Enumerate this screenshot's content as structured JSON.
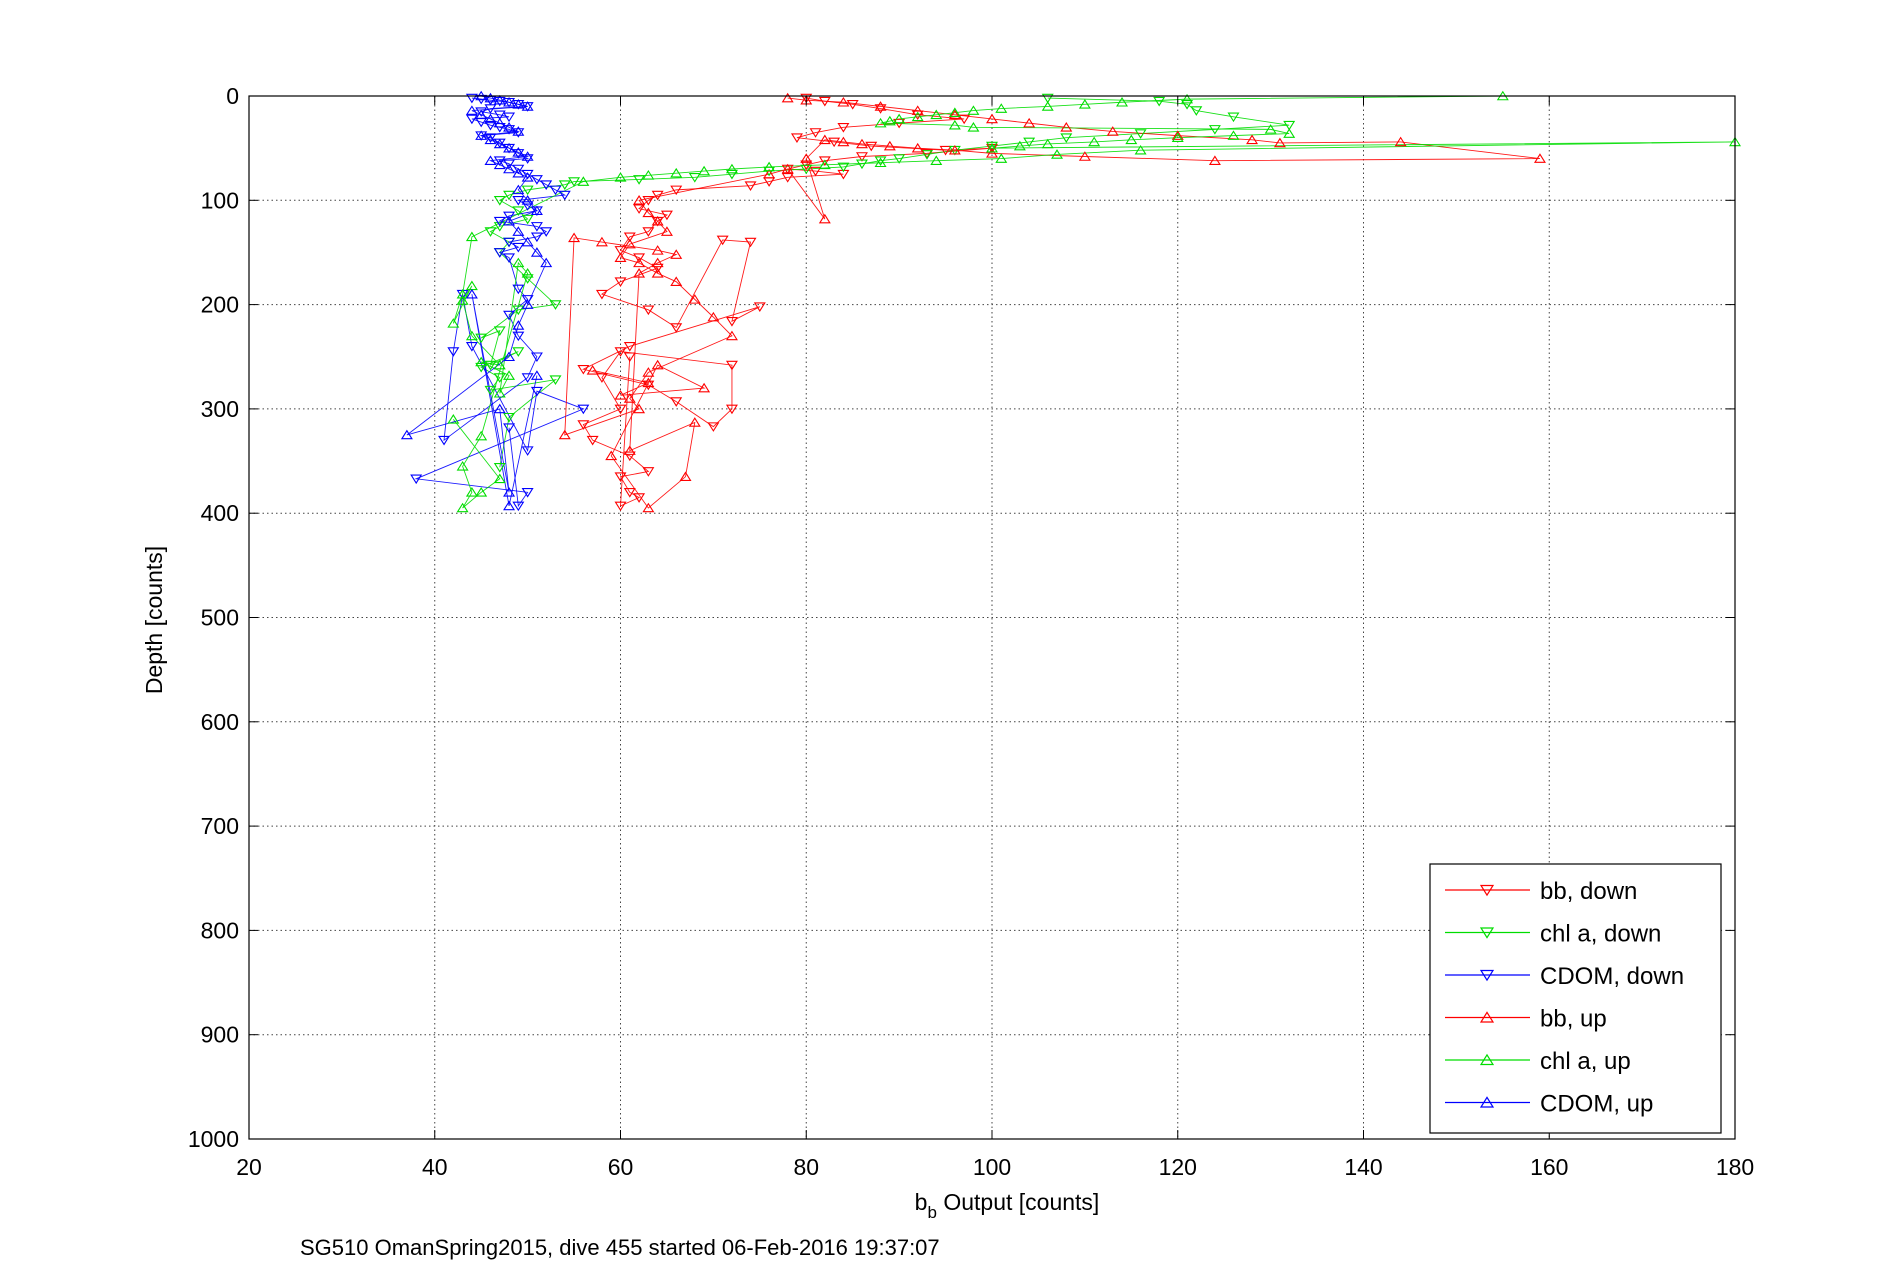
{
  "caption": "SG510 OmanSpring2015, dive 455 started 06-Feb-2016 19:37:07",
  "chart_data": {
    "type": "scatter",
    "title": "",
    "xlabel_main": "b",
    "xlabel_sub": "b",
    "xlabel_rest": " Output [counts]",
    "ylabel": "Depth [counts]",
    "xlim": [
      20,
      180
    ],
    "ylim": [
      0,
      1000
    ],
    "y_reversed": true,
    "grid": true,
    "legend_position": "bottom-right",
    "x_ticks": [
      20,
      40,
      60,
      80,
      100,
      120,
      140,
      160,
      180
    ],
    "y_ticks": [
      0,
      100,
      200,
      300,
      400,
      500,
      600,
      700,
      800,
      900,
      1000
    ],
    "x_tick_labels": [
      "20",
      "40",
      "60",
      "80",
      "100",
      "120",
      "140",
      "160",
      "180"
    ],
    "y_tick_labels": [
      "0",
      "100",
      "200",
      "300",
      "400",
      "500",
      "600",
      "700",
      "800",
      "900",
      "1000"
    ],
    "series": [
      {
        "name": "bb, down",
        "color": "#ff0000",
        "marker": "triangle-down",
        "x": [
          80,
          82,
          85,
          88,
          92,
          97,
          90,
          84,
          81,
          79,
          83,
          87,
          95,
          100,
          93,
          86,
          82,
          80,
          78,
          81,
          84,
          78,
          76,
          74,
          66,
          64,
          63,
          62,
          65,
          64,
          63,
          61,
          60,
          62,
          64,
          60,
          58,
          63,
          66,
          71,
          74,
          72,
          75,
          61,
          56,
          63,
          66,
          70,
          72,
          72,
          60,
          58,
          60,
          56,
          57,
          61,
          63,
          60,
          61,
          62,
          60,
          61
        ],
        "y": [
          2,
          5,
          8,
          12,
          18,
          22,
          26,
          30,
          35,
          40,
          44,
          48,
          52,
          50,
          55,
          58,
          62,
          66,
          70,
          72,
          75,
          78,
          82,
          86,
          90,
          95,
          100,
          108,
          114,
          120,
          130,
          135,
          148,
          155,
          165,
          178,
          190,
          205,
          222,
          138,
          140,
          216,
          202,
          240,
          262,
          277,
          293,
          317,
          300,
          258,
          245,
          270,
          300,
          315,
          330,
          345,
          360,
          365,
          380,
          385,
          393,
          250
        ]
      },
      {
        "name": "chl a, down",
        "color": "#00dd00",
        "marker": "triangle-down",
        "x": [
          106,
          118,
          121,
          122,
          126,
          132,
          124,
          116,
          108,
          104,
          100,
          96,
          93,
          90,
          88,
          86,
          84,
          80,
          76,
          72,
          68,
          62,
          55,
          54,
          50,
          48,
          47,
          49,
          50,
          47,
          46,
          48,
          47,
          50,
          53,
          49,
          45,
          47,
          46,
          49,
          45,
          47,
          46,
          53,
          48,
          47
        ],
        "y": [
          2,
          5,
          8,
          14,
          20,
          28,
          32,
          36,
          40,
          44,
          48,
          52,
          56,
          60,
          62,
          65,
          68,
          70,
          72,
          75,
          78,
          80,
          82,
          85,
          90,
          95,
          100,
          110,
          118,
          125,
          130,
          140,
          150,
          175,
          200,
          205,
          232,
          225,
          258,
          245,
          260,
          270,
          282,
          272,
          308,
          356
        ]
      },
      {
        "name": "CDOM, down",
        "color": "#0000ff",
        "marker": "triangle-down",
        "x": [
          44,
          45,
          46,
          47,
          48,
          49,
          50,
          46,
          45,
          47,
          48,
          44,
          45,
          46,
          47,
          48,
          49,
          45,
          46,
          47,
          48,
          49,
          50,
          47,
          48,
          49,
          50,
          51,
          52,
          53,
          54,
          49,
          50,
          51,
          48,
          47,
          51,
          52,
          51,
          48,
          49,
          47,
          48,
          49,
          50,
          48,
          49,
          51,
          50,
          41,
          42,
          43,
          44,
          50,
          51,
          56,
          38,
          50,
          49,
          48
        ],
        "y": [
          2,
          3,
          4,
          5,
          6,
          8,
          10,
          12,
          15,
          18,
          20,
          22,
          25,
          28,
          30,
          32,
          35,
          38,
          40,
          45,
          50,
          55,
          60,
          62,
          65,
          70,
          75,
          80,
          85,
          90,
          95,
          100,
          105,
          110,
          115,
          120,
          125,
          130,
          135,
          140,
          145,
          150,
          155,
          185,
          195,
          210,
          230,
          250,
          270,
          330,
          245,
          190,
          240,
          340,
          283,
          300,
          367,
          380,
          393,
          318
        ]
      },
      {
        "name": "bb, up",
        "color": "#ff0000",
        "marker": "triangle-up",
        "x": [
          78,
          80,
          84,
          88,
          92,
          96,
          100,
          104,
          108,
          113,
          120,
          128,
          131,
          144,
          159,
          124,
          110,
          100,
          96,
          92,
          89,
          86,
          84,
          82,
          80,
          82,
          78,
          76,
          62,
          63,
          64,
          65,
          61,
          60,
          62,
          64,
          66,
          68,
          70,
          72,
          63,
          61,
          62,
          54,
          55,
          58,
          64,
          66,
          64,
          62,
          61,
          68,
          67,
          63,
          59,
          64,
          69,
          60,
          63,
          57
        ],
        "y": [
          2,
          4,
          6,
          10,
          14,
          18,
          22,
          26,
          30,
          34,
          38,
          42,
          45,
          44,
          60,
          62,
          58,
          55,
          52,
          50,
          48,
          46,
          44,
          42,
          60,
          118,
          70,
          75,
          100,
          112,
          120,
          130,
          142,
          155,
          160,
          170,
          178,
          195,
          212,
          230,
          265,
          290,
          300,
          325,
          136,
          140,
          148,
          152,
          160,
          170,
          340,
          313,
          365,
          395,
          345,
          258,
          280,
          287,
          275,
          263
        ]
      },
      {
        "name": "chl a, up",
        "color": "#00dd00",
        "marker": "triangle-up",
        "x": [
          155,
          121,
          114,
          110,
          106,
          101,
          98,
          96,
          94,
          92,
          90,
          89,
          88,
          96,
          98,
          130,
          132,
          126,
          120,
          115,
          111,
          106,
          103,
          100,
          180,
          116,
          107,
          101,
          94,
          88,
          82,
          76,
          72,
          69,
          66,
          63,
          60,
          56,
          44,
          43,
          42,
          44,
          43,
          44,
          47,
          45,
          48,
          47,
          49,
          50,
          45,
          43,
          44,
          43,
          45,
          47,
          42
        ],
        "y": [
          0,
          3,
          6,
          8,
          10,
          12,
          14,
          16,
          18,
          20,
          22,
          24,
          26,
          28,
          30,
          32,
          36,
          38,
          40,
          42,
          44,
          46,
          48,
          50,
          44,
          52,
          56,
          60,
          62,
          64,
          66,
          68,
          70,
          72,
          74,
          76,
          78,
          82,
          135,
          190,
          218,
          182,
          196,
          230,
          258,
          255,
          268,
          285,
          160,
          170,
          326,
          355,
          380,
          395,
          380,
          367,
          310
        ]
      },
      {
        "name": "CDOM, up",
        "color": "#0000ff",
        "marker": "triangle-up",
        "x": [
          45,
          46,
          47,
          48,
          49,
          50,
          44,
          45,
          46,
          47,
          48,
          49,
          45,
          46,
          47,
          48,
          49,
          50,
          46,
          47,
          48,
          49,
          50,
          49,
          50,
          51,
          48,
          49,
          50,
          51,
          52,
          50,
          49,
          48,
          37,
          47,
          48,
          44,
          48,
          51
        ],
        "y": [
          0,
          2,
          4,
          6,
          8,
          10,
          14,
          18,
          22,
          26,
          30,
          34,
          38,
          42,
          46,
          50,
          54,
          58,
          62,
          66,
          70,
          74,
          78,
          90,
          100,
          110,
          120,
          130,
          140,
          150,
          160,
          200,
          220,
          250,
          325,
          300,
          380,
          190,
          393,
          268
        ]
      }
    ]
  }
}
